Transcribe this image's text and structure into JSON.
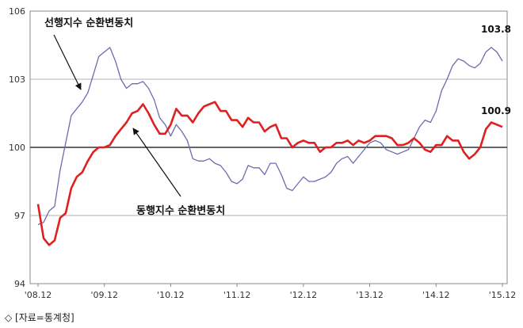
{
  "chart_data": {
    "type": "line",
    "ylim": [
      94,
      106
    ],
    "yticks": [
      "94",
      "97",
      "100",
      "103",
      "106"
    ],
    "xticks": [
      "'08.12",
      "'09.12",
      "'10.12",
      "'11.12",
      "'12.12",
      "'13.12",
      "'14.12",
      "'15.12"
    ],
    "baseline": 100,
    "grid": true,
    "series": [
      {
        "name": "선행지수 순환변동치",
        "color": "#6b6bb0",
        "end_label": "103.8",
        "x_start": "2008-12",
        "values": [
          96.6,
          96.7,
          97.2,
          97.4,
          99.0,
          100.2,
          101.4,
          101.7,
          102.0,
          102.4,
          103.2,
          104.0,
          104.2,
          104.4,
          103.8,
          103.0,
          102.6,
          102.8,
          102.8,
          102.9,
          102.6,
          102.1,
          101.3,
          101.0,
          100.5,
          101.0,
          100.7,
          100.3,
          99.5,
          99.4,
          99.4,
          99.5,
          99.3,
          99.2,
          98.9,
          98.5,
          98.4,
          98.6,
          99.2,
          99.1,
          99.1,
          98.8,
          99.3,
          99.3,
          98.8,
          98.2,
          98.1,
          98.4,
          98.7,
          98.5,
          98.5,
          98.6,
          98.7,
          98.9,
          99.3,
          99.5,
          99.6,
          99.3,
          99.6,
          99.9,
          100.2,
          100.3,
          100.2,
          99.9,
          99.8,
          99.7,
          99.8,
          99.9,
          100.4,
          100.9,
          101.2,
          101.1,
          101.6,
          102.5,
          103.0,
          103.6,
          103.9,
          103.8,
          103.6,
          103.5,
          103.7,
          104.2,
          104.4,
          104.2,
          103.8
        ]
      },
      {
        "name": "동행지수 순환변동치",
        "color": "#e02020",
        "end_label": "100.9",
        "x_start": "2008-12",
        "values": [
          97.5,
          96.0,
          95.7,
          95.9,
          96.9,
          97.1,
          98.2,
          98.7,
          98.9,
          99.4,
          99.8,
          100.0,
          100.0,
          100.1,
          100.5,
          100.8,
          101.1,
          101.5,
          101.6,
          101.9,
          101.5,
          101.0,
          100.6,
          100.6,
          101.0,
          101.7,
          101.4,
          101.4,
          101.1,
          101.5,
          101.8,
          101.9,
          102.0,
          101.6,
          101.6,
          101.2,
          101.2,
          100.9,
          101.3,
          101.1,
          101.1,
          100.7,
          100.9,
          101.0,
          100.4,
          100.4,
          100.0,
          100.2,
          100.3,
          100.2,
          100.2,
          99.8,
          100.0,
          100.0,
          100.2,
          100.2,
          100.3,
          100.1,
          100.3,
          100.2,
          100.3,
          100.5,
          100.5,
          100.5,
          100.4,
          100.1,
          100.1,
          100.2,
          100.4,
          100.2,
          99.9,
          99.8,
          100.1,
          100.1,
          100.5,
          100.3,
          100.3,
          99.8,
          99.5,
          99.7,
          100.0,
          100.8,
          101.1,
          101.0,
          100.9
        ]
      }
    ],
    "annotations": [
      {
        "text": "선행지수 순환변동치",
        "series": 0
      },
      {
        "text": "동행지수 순환변동치",
        "series": 1
      }
    ]
  },
  "source_note": "◇ [자료=통계청]"
}
